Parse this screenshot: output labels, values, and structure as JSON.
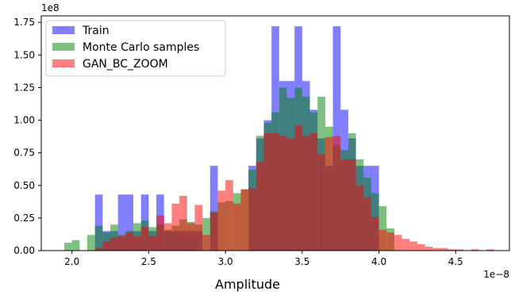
{
  "chart_data": {
    "type": "histogram",
    "title": "",
    "xlabel": "Amplitude",
    "ylabel": "",
    "x_multiplier_label": "1e−8",
    "y_multiplier_label": "1e8",
    "xlim": [
      1.8,
      4.85
    ],
    "ylim": [
      0,
      1.8
    ],
    "x_ticks": [
      2.0,
      2.5,
      3.0,
      3.5,
      4.0,
      4.5
    ],
    "x_tick_labels": [
      "2.0",
      "2.5",
      "3.0",
      "3.5",
      "4.0",
      "4.5"
    ],
    "y_ticks": [
      0.0,
      0.25,
      0.5,
      0.75,
      1.0,
      1.25,
      1.5,
      1.75
    ],
    "y_tick_labels": [
      "0.00",
      "0.25",
      "0.50",
      "0.75",
      "1.00",
      "1.25",
      "1.50",
      "1.75"
    ],
    "grid": false,
    "legend": {
      "position": "top-left"
    },
    "series": [
      {
        "name": "Train",
        "color": "#0000ff",
        "alpha": 0.5,
        "bins": [
          [
            2.15,
            2.2,
            0.43
          ],
          [
            2.2,
            2.25,
            0.15
          ],
          [
            2.25,
            2.3,
            0.15
          ],
          [
            2.3,
            2.35,
            0.43
          ],
          [
            2.35,
            2.4,
            0.43
          ],
          [
            2.4,
            2.45,
            0.15
          ],
          [
            2.45,
            2.5,
            0.43
          ],
          [
            2.5,
            2.55,
            0.15
          ],
          [
            2.55,
            2.6,
            0.43
          ],
          [
            2.6,
            2.65,
            0.15
          ],
          [
            2.65,
            2.7,
            0.15
          ],
          [
            2.7,
            2.75,
            0.15
          ],
          [
            2.75,
            2.8,
            0.15
          ],
          [
            2.8,
            2.85,
            0.15
          ],
          [
            2.9,
            2.95,
            0.65
          ],
          [
            3.15,
            3.2,
            0.65
          ],
          [
            3.2,
            3.25,
            0.86
          ],
          [
            3.25,
            3.3,
            1.0
          ],
          [
            3.3,
            3.35,
            1.72
          ],
          [
            3.35,
            3.4,
            1.3
          ],
          [
            3.4,
            3.45,
            1.3
          ],
          [
            3.45,
            3.5,
            1.72
          ],
          [
            3.5,
            3.55,
            1.3
          ],
          [
            3.55,
            3.6,
            1.08
          ],
          [
            3.6,
            3.65,
            0.86
          ],
          [
            3.65,
            3.7,
            0.65
          ],
          [
            3.7,
            3.75,
            1.72
          ],
          [
            3.75,
            3.8,
            1.08
          ],
          [
            3.8,
            3.85,
            0.86
          ],
          [
            3.85,
            3.9,
            0.65
          ],
          [
            3.9,
            3.95,
            0.65
          ],
          [
            3.95,
            4.0,
            0.65
          ]
        ]
      },
      {
        "name": "Monte Carlo samples",
        "color": "#008000",
        "alpha": 0.5,
        "bins": [
          [
            1.95,
            2.0,
            0.06
          ],
          [
            2.0,
            2.05,
            0.08
          ],
          [
            2.1,
            2.15,
            0.12
          ],
          [
            2.15,
            2.2,
            0.19
          ],
          [
            2.2,
            2.25,
            0.14
          ],
          [
            2.25,
            2.3,
            0.2
          ],
          [
            2.3,
            2.35,
            0.12
          ],
          [
            2.35,
            2.4,
            0.15
          ],
          [
            2.4,
            2.45,
            0.21
          ],
          [
            2.45,
            2.5,
            0.23
          ],
          [
            2.5,
            2.55,
            0.18
          ],
          [
            2.55,
            2.6,
            0.2
          ],
          [
            2.6,
            2.65,
            0.16
          ],
          [
            2.65,
            2.7,
            0.19
          ],
          [
            2.7,
            2.75,
            0.24
          ],
          [
            2.75,
            2.8,
            0.22
          ],
          [
            2.8,
            2.85,
            0.2
          ],
          [
            2.85,
            2.9,
            0.25
          ],
          [
            2.9,
            2.95,
            0.3
          ],
          [
            2.95,
            3.0,
            0.37
          ],
          [
            3.0,
            3.05,
            0.38
          ],
          [
            3.05,
            3.1,
            0.44
          ],
          [
            3.1,
            3.15,
            0.47
          ],
          [
            3.15,
            3.2,
            0.62
          ],
          [
            3.2,
            3.25,
            0.88
          ],
          [
            3.25,
            3.3,
            0.98
          ],
          [
            3.3,
            3.35,
            1.06
          ],
          [
            3.35,
            3.4,
            1.25
          ],
          [
            3.4,
            3.45,
            1.17
          ],
          [
            3.45,
            3.5,
            1.25
          ],
          [
            3.5,
            3.55,
            1.18
          ],
          [
            3.55,
            3.6,
            1.06
          ],
          [
            3.6,
            3.65,
            1.18
          ],
          [
            3.65,
            3.7,
            0.95
          ],
          [
            3.7,
            3.75,
            0.81
          ],
          [
            3.75,
            3.8,
            0.77
          ],
          [
            3.8,
            3.85,
            0.9
          ],
          [
            3.85,
            3.9,
            0.7
          ],
          [
            3.9,
            3.95,
            0.56
          ],
          [
            3.95,
            4.0,
            0.44
          ],
          [
            4.0,
            4.05,
            0.34
          ],
          [
            4.05,
            4.1,
            0.17
          ]
        ]
      },
      {
        "name": "GAN_BC_ZOOM",
        "color": "#ff0000",
        "alpha": 0.5,
        "bins": [
          [
            2.15,
            2.2,
            0.02
          ],
          [
            2.2,
            2.25,
            0.07
          ],
          [
            2.25,
            2.3,
            0.1
          ],
          [
            2.3,
            2.35,
            0.11
          ],
          [
            2.35,
            2.4,
            0.14
          ],
          [
            2.4,
            2.45,
            0.11
          ],
          [
            2.45,
            2.5,
            0.18
          ],
          [
            2.5,
            2.55,
            0.11
          ],
          [
            2.55,
            2.6,
            0.27
          ],
          [
            2.6,
            2.65,
            0.21
          ],
          [
            2.65,
            2.7,
            0.36
          ],
          [
            2.7,
            2.75,
            0.42
          ],
          [
            2.75,
            2.8,
            0.21
          ],
          [
            2.8,
            2.85,
            0.35
          ],
          [
            2.85,
            2.9,
            0.12
          ],
          [
            2.9,
            2.95,
            0.29
          ],
          [
            2.95,
            3.0,
            0.46
          ],
          [
            3.0,
            3.05,
            0.54
          ],
          [
            3.05,
            3.1,
            0.36
          ],
          [
            3.1,
            3.15,
            0.47
          ],
          [
            3.15,
            3.2,
            0.48
          ],
          [
            3.2,
            3.25,
            0.68
          ],
          [
            3.25,
            3.3,
            0.9
          ],
          [
            3.3,
            3.35,
            0.9
          ],
          [
            3.35,
            3.4,
            0.88
          ],
          [
            3.4,
            3.45,
            0.86
          ],
          [
            3.45,
            3.5,
            0.96
          ],
          [
            3.5,
            3.55,
            0.88
          ],
          [
            3.55,
            3.6,
            0.9
          ],
          [
            3.6,
            3.65,
            0.74
          ],
          [
            3.65,
            3.7,
            0.87
          ],
          [
            3.7,
            3.75,
            0.88
          ],
          [
            3.75,
            3.8,
            0.7
          ],
          [
            3.8,
            3.85,
            0.7
          ],
          [
            3.85,
            3.9,
            0.5
          ],
          [
            3.9,
            3.95,
            0.41
          ],
          [
            3.95,
            4.0,
            0.26
          ],
          [
            4.0,
            4.05,
            0.16
          ],
          [
            4.05,
            4.1,
            0.14
          ],
          [
            4.1,
            4.15,
            0.12
          ],
          [
            4.15,
            4.2,
            0.09
          ],
          [
            4.2,
            4.25,
            0.07
          ],
          [
            4.25,
            4.3,
            0.05
          ],
          [
            4.3,
            4.35,
            0.03
          ],
          [
            4.35,
            4.4,
            0.02
          ],
          [
            4.4,
            4.45,
            0.02
          ],
          [
            4.45,
            4.5,
            0.01
          ],
          [
            4.5,
            4.55,
            0.01
          ],
          [
            4.6,
            4.65,
            0.01
          ],
          [
            4.7,
            4.75,
            0.01
          ]
        ]
      }
    ]
  }
}
